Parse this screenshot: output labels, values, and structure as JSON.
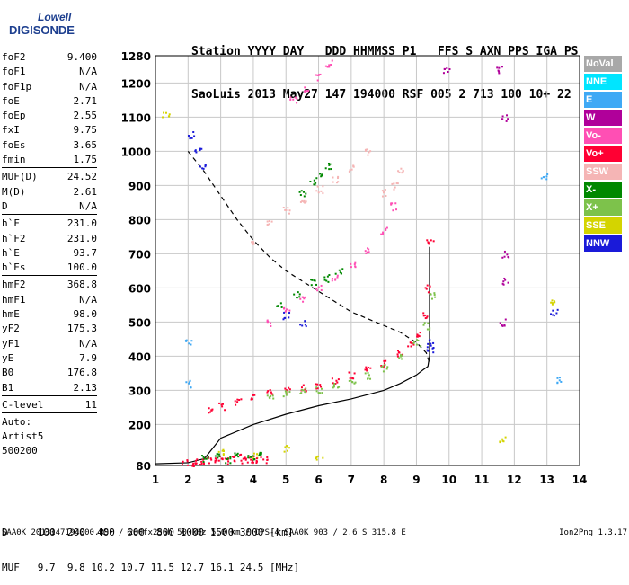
{
  "logo": {
    "top": "Lowell",
    "bottom": "DIGISONDE"
  },
  "header": {
    "line1": "Station YYYY DAY   DDD HHMMSS P1   FFS S AXN PPS IGA PS",
    "line2": "SaoLuis 2013 May27 147 194000 RSF 005 2 713 100 10+ 22"
  },
  "params": [
    [
      {
        "name": "foF2",
        "value": "9.400"
      },
      {
        "name": "foF1",
        "value": "N/A"
      },
      {
        "name": "foF1p",
        "value": "N/A"
      },
      {
        "name": "foE",
        "value": "2.71"
      },
      {
        "name": "foEp",
        "value": "2.55"
      },
      {
        "name": "fxI",
        "value": "9.75"
      },
      {
        "name": "foEs",
        "value": "3.65"
      },
      {
        "name": "fmin",
        "value": "1.75"
      }
    ],
    [
      {
        "name": "MUF(D)",
        "value": "24.52"
      },
      {
        "name": "M(D)",
        "value": "2.61"
      },
      {
        "name": "D",
        "value": "N/A"
      }
    ],
    [
      {
        "name": "h`F",
        "value": "231.0"
      },
      {
        "name": "h`F2",
        "value": "231.0"
      },
      {
        "name": "h`E",
        "value": "93.7"
      },
      {
        "name": "h`Es",
        "value": "100.0"
      }
    ],
    [
      {
        "name": "hmF2",
        "value": "368.8"
      },
      {
        "name": "hmF1",
        "value": "N/A"
      },
      {
        "name": "hmE",
        "value": "98.0"
      },
      {
        "name": "yF2",
        "value": "175.3"
      },
      {
        "name": "yF1",
        "value": "N/A"
      },
      {
        "name": "yE",
        "value": "7.9"
      },
      {
        "name": "B0",
        "value": "176.8"
      },
      {
        "name": "B1",
        "value": "2.13"
      }
    ],
    [
      {
        "name": "C-level",
        "value": "11"
      }
    ]
  ],
  "auto": [
    "Auto:",
    "Artist5",
    "500200"
  ],
  "legend": [
    {
      "label": "NoVal",
      "color": "#a8a8a8"
    },
    {
      "label": "NNE",
      "color": "#00e5ff"
    },
    {
      "label": "E",
      "color": "#3fa9f5"
    },
    {
      "label": "W",
      "color": "#b0009a"
    },
    {
      "label": "Vo-",
      "color": "#ff4fb4"
    },
    {
      "label": "Vo+",
      "color": "#ff0033"
    },
    {
      "label": "SSW",
      "color": "#f5b5b5"
    },
    {
      "label": "X-",
      "color": "#008800"
    },
    {
      "label": "X+",
      "color": "#7dc24b"
    },
    {
      "label": "SSE",
      "color": "#d4d400"
    },
    {
      "label": "NNW",
      "color": "#1a1ad9"
    }
  ],
  "dmuf": {
    "d_line": "D     100  200  400  600  800 1000 1500 3000 [km]",
    "muf_line": "MUF   9.7  9.8 10.2 10.7 11.5 12.7 16.1 24.5 [MHz]"
  },
  "footer": {
    "left": "SAA0K_2013147194000.RSF / 260fx256h 50 kHz 5.0 km / DPS-4 SAA0K 903 / 2.6 S 315.8 E",
    "right": "Ion2Png 1.3.17"
  },
  "chart_data": {
    "type": "scatter",
    "xlim": [
      1,
      14
    ],
    "ylim": [
      80,
      1280
    ],
    "xticks": [
      1,
      2,
      3,
      4,
      5,
      6,
      7,
      8,
      9,
      10,
      11,
      12,
      13,
      14
    ],
    "yticks": [
      80,
      200,
      300,
      400,
      500,
      600,
      700,
      800,
      900,
      1000,
      1100,
      1200,
      1280
    ],
    "grid": true,
    "series": [
      {
        "name": "Vo+",
        "color": "#ff0033",
        "x": [
          2.7,
          3.0,
          3.5,
          4.0,
          4.5,
          5.0,
          5.5,
          6.0,
          6.5,
          7.0,
          7.5,
          8.0,
          8.5,
          8.8,
          9.0,
          9.2,
          9.35,
          9.4
        ],
        "y": [
          245,
          255,
          270,
          285,
          295,
          302,
          308,
          318,
          330,
          345,
          360,
          380,
          410,
          440,
          470,
          520,
          600,
          740
        ]
      },
      {
        "name": "X+",
        "color": "#7dc24b",
        "x": [
          4.5,
          5.0,
          5.5,
          6.0,
          6.5,
          7.0,
          7.5,
          8.0,
          8.5,
          9.0,
          9.3,
          9.5
        ],
        "y": [
          280,
          290,
          298,
          305,
          315,
          328,
          345,
          368,
          398,
          440,
          490,
          580
        ]
      },
      {
        "name": "Vo-",
        "color": "#ff4fb4",
        "x": [
          4.5,
          5.0,
          5.5,
          6.0,
          6.5,
          7.0,
          7.5,
          8.0,
          8.3
        ],
        "y": [
          500,
          540,
          570,
          600,
          630,
          670,
          710,
          770,
          840
        ]
      },
      {
        "name": "X-",
        "color": "#008800",
        "x": [
          4.8,
          5.3,
          5.8,
          6.2,
          6.6
        ],
        "y": [
          550,
          580,
          620,
          630,
          650
        ]
      },
      {
        "name": "SSW",
        "color": "#f5b5b5",
        "x": [
          4.0,
          4.5,
          5.0,
          5.5,
          6.0,
          6.5,
          7.0,
          7.5,
          8.0,
          8.3,
          8.5
        ],
        "y": [
          730,
          790,
          830,
          860,
          890,
          920,
          950,
          1000,
          880,
          900,
          950
        ]
      },
      {
        "name": "X-",
        "color": "#008800",
        "x": [
          5.5,
          5.8,
          6.0,
          6.3
        ],
        "y": [
          880,
          910,
          930,
          960
        ]
      },
      {
        "name": "Vo-",
        "color": "#ff4fb4",
        "x": [
          5.2,
          5.6,
          6.0,
          6.3
        ],
        "y": [
          1150,
          1180,
          1220,
          1260
        ]
      },
      {
        "name": "W",
        "color": "#b0009a",
        "x": [
          9.9,
          11.5,
          11.7,
          11.7,
          11.7,
          11.6
        ],
        "y": [
          1240,
          1240,
          1100,
          700,
          620,
          500
        ]
      },
      {
        "name": "NNW",
        "color": "#1a1ad9",
        "x": [
          2.1,
          2.3,
          2.4,
          5.0,
          5.5,
          9.4,
          9.4,
          13.2
        ],
        "y": [
          1050,
          1000,
          960,
          520,
          500,
          440,
          420,
          530
        ]
      },
      {
        "name": "SSE",
        "color": "#d4d400",
        "x": [
          1.3,
          3.0,
          4.0,
          5.0,
          6.0,
          11.6,
          13.1
        ],
        "y": [
          1110,
          120,
          110,
          130,
          100,
          160,
          560
        ]
      },
      {
        "name": "E",
        "color": "#3fa9f5",
        "x": [
          2.0,
          2.0,
          13.3,
          12.9
        ],
        "y": [
          440,
          320,
          330,
          930
        ]
      },
      {
        "name": "E-layer traces",
        "color": "#ff0033",
        "x": [
          1.9,
          2.1,
          2.3,
          2.5,
          2.7,
          2.9,
          3.1,
          3.3,
          3.5,
          3.7,
          3.9,
          4.1,
          4.3
        ],
        "y": [
          88,
          90,
          92,
          95,
          97,
          100,
          96,
          100,
          104,
          98,
          95,
          100,
          96
        ]
      },
      {
        "name": "E-layer traces (X)",
        "color": "#008800",
        "x": [
          2.5,
          2.9,
          3.2,
          3.5,
          3.9,
          4.2
        ],
        "y": [
          102,
          110,
          100,
          115,
          104,
          112
        ]
      }
    ],
    "lines": [
      {
        "name": "true-height profile",
        "style": "solid",
        "x": [
          1.0,
          2.0,
          2.5,
          3.0,
          4.0,
          5.0,
          6.0,
          7.0,
          8.0,
          8.5,
          9.0,
          9.2,
          9.35,
          9.4,
          9.4
        ],
        "y": [
          85,
          88,
          100,
          160,
          200,
          230,
          255,
          275,
          300,
          320,
          345,
          360,
          370,
          400,
          720
        ]
      },
      {
        "name": "electron-density profile",
        "style": "dashed",
        "x": [
          2.0,
          2.5,
          3.0,
          3.5,
          4.0,
          4.5,
          5.0,
          5.5,
          6.0,
          6.5,
          7.0,
          7.5,
          8.0,
          8.5,
          9.0,
          9.3,
          9.4
        ],
        "y": [
          1000,
          940,
          870,
          800,
          740,
          690,
          650,
          620,
          590,
          560,
          530,
          510,
          490,
          470,
          440,
          410,
          380
        ]
      }
    ]
  }
}
